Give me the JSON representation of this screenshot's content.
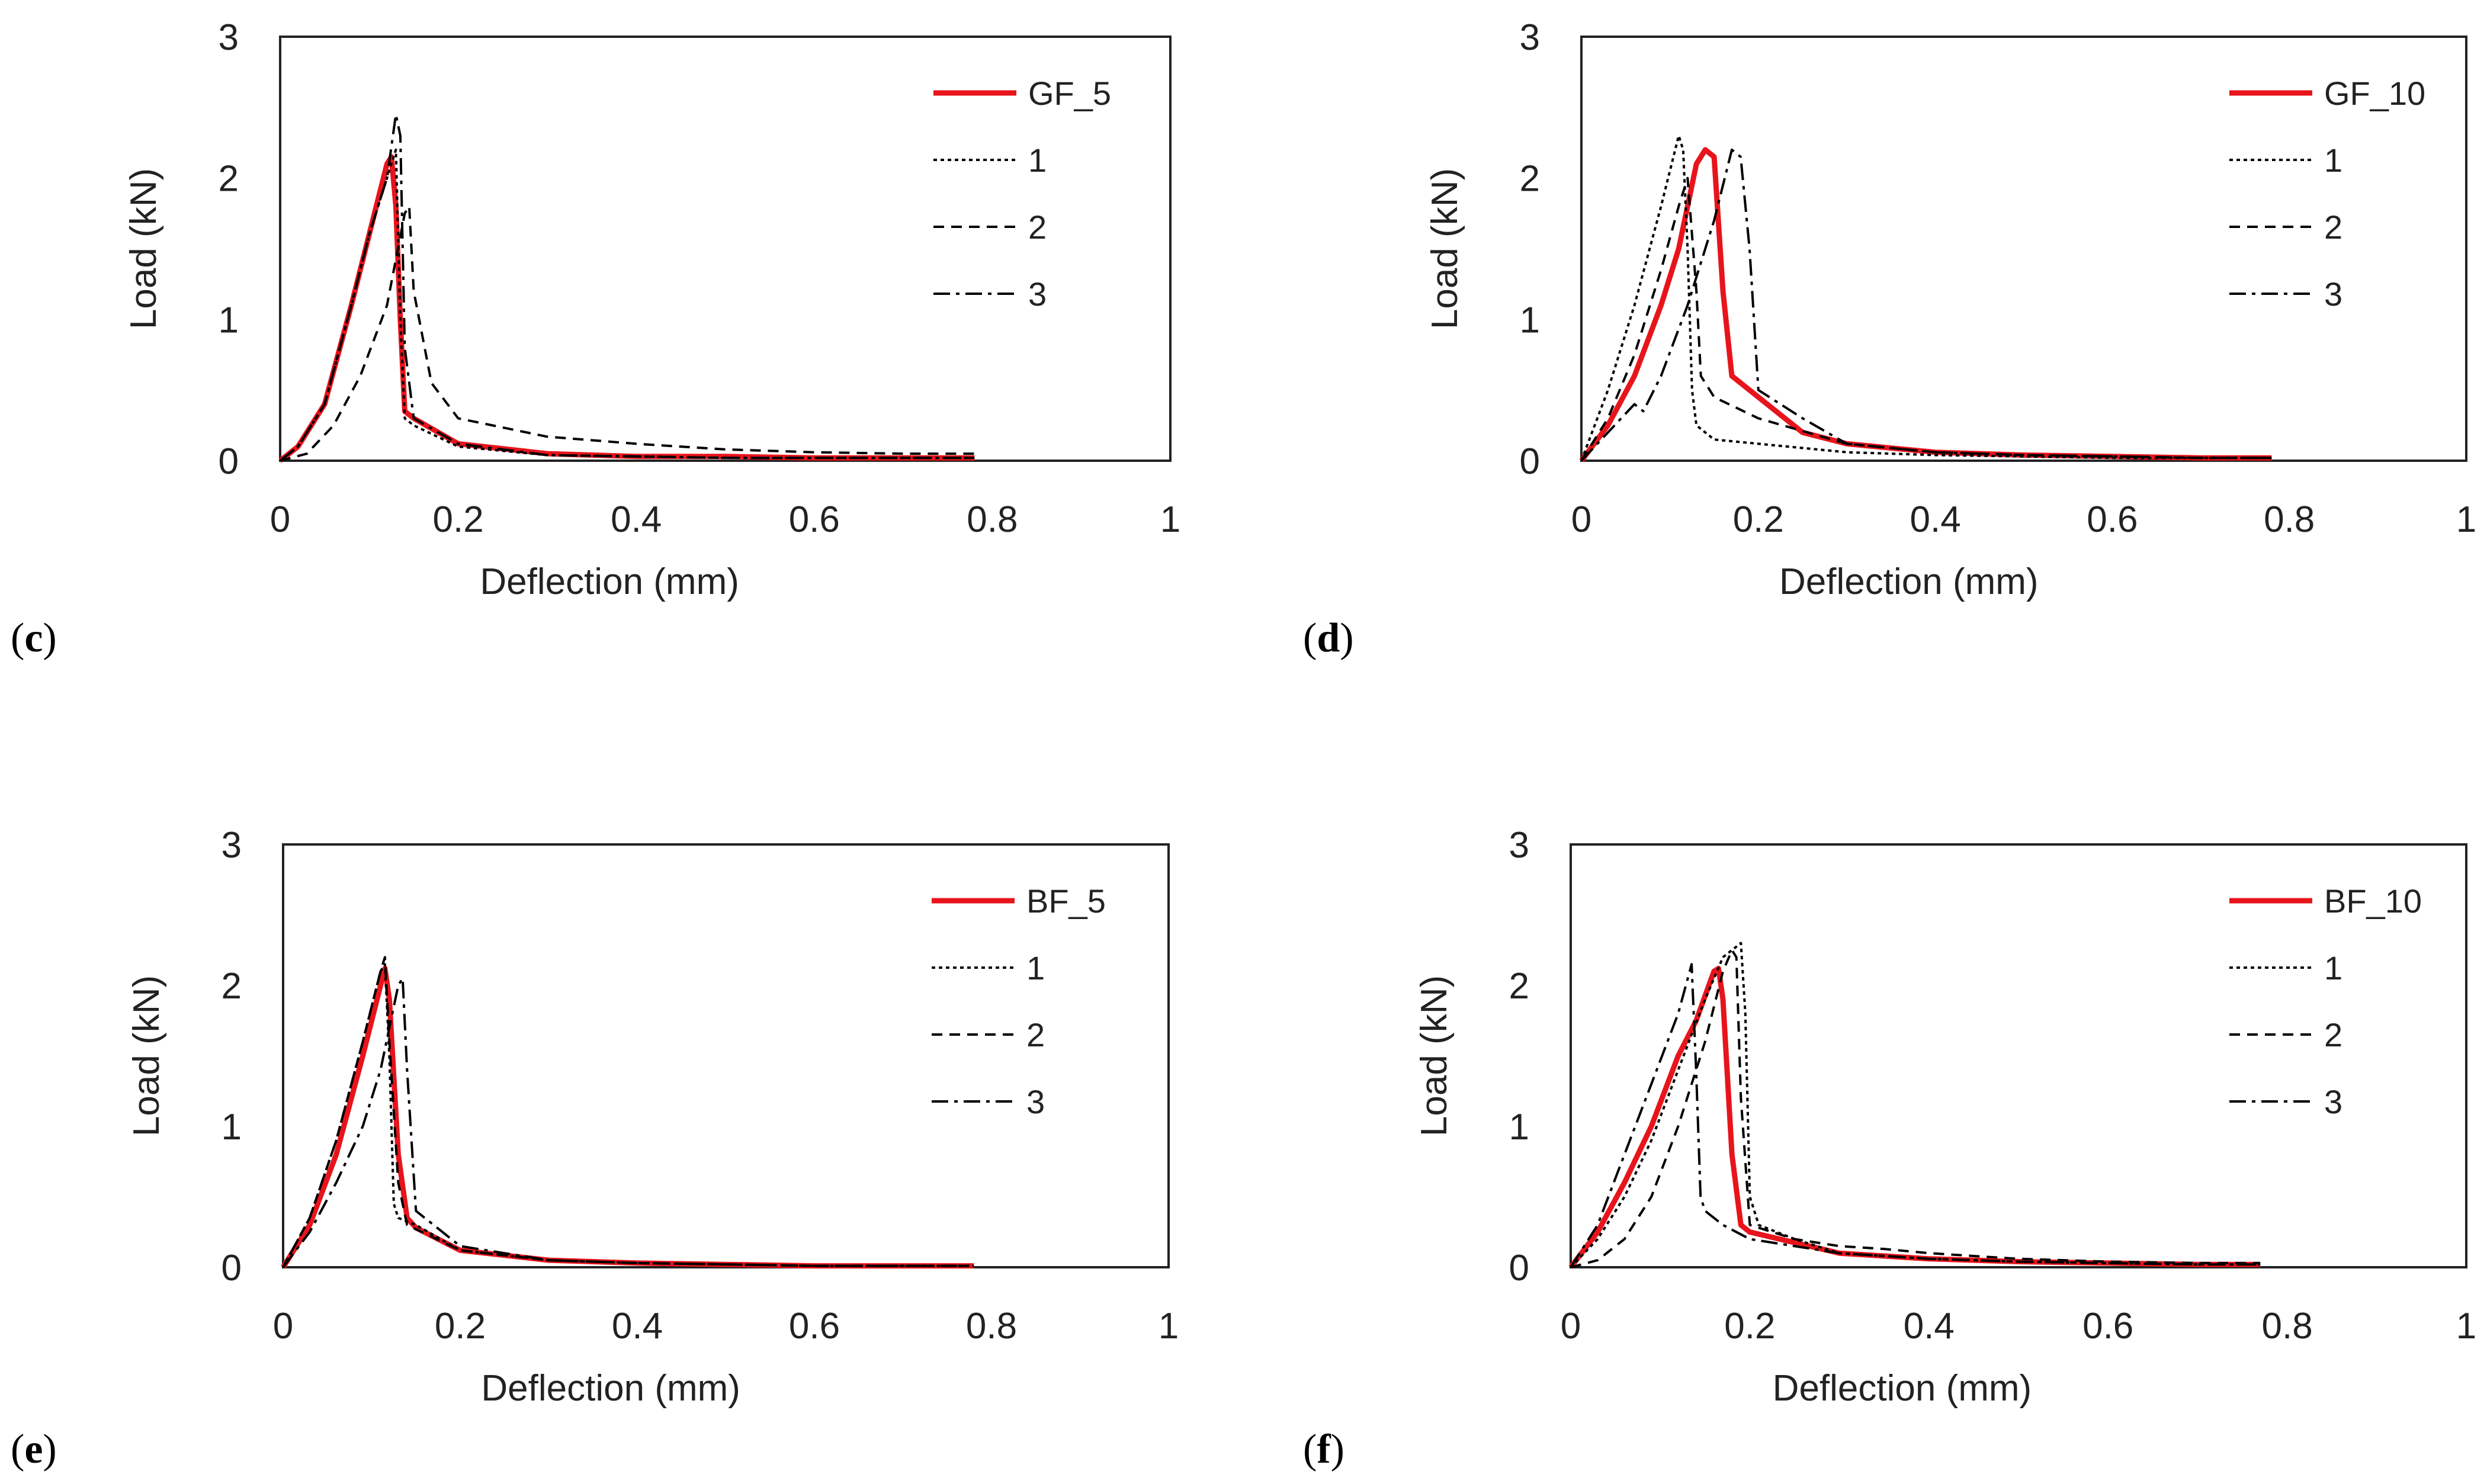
{
  "figure": {
    "panels": [
      "c",
      "d",
      "e",
      "f"
    ]
  },
  "chart_data": [
    {
      "panel_label": "c",
      "type": "line",
      "xlabel": "Deflection (mm)",
      "ylabel": "Load (kN)",
      "xlim": [
        0,
        1
      ],
      "ylim": [
        0,
        3
      ],
      "xticks": [
        "0",
        "0.2",
        "0.4",
        "0.6",
        "0.8",
        "1"
      ],
      "yticks": [
        "0",
        "1",
        "2",
        "3"
      ],
      "grid": false,
      "legend": "top-right",
      "series": [
        {
          "name": "GF_5",
          "style": "solid",
          "color": "#e8141c",
          "x": [
            0,
            0.02,
            0.05,
            0.08,
            0.1,
            0.12,
            0.125,
            0.13,
            0.135,
            0.14,
            0.15,
            0.2,
            0.3,
            0.4,
            0.5,
            0.6,
            0.7,
            0.78
          ],
          "y": [
            0,
            0.1,
            0.4,
            1.1,
            1.6,
            2.1,
            2.15,
            1.8,
            1.0,
            0.35,
            0.3,
            0.12,
            0.05,
            0.03,
            0.03,
            0.02,
            0.02,
            0.02
          ]
        },
        {
          "name": "1",
          "style": "dot",
          "color": "#000000",
          "x": [
            0,
            0.02,
            0.05,
            0.08,
            0.1,
            0.12,
            0.13,
            0.135,
            0.14,
            0.15,
            0.2,
            0.3,
            0.4,
            0.5,
            0.6,
            0.7,
            0.78
          ],
          "y": [
            0,
            0.1,
            0.4,
            1.1,
            1.6,
            2.0,
            2.2,
            1.0,
            0.3,
            0.25,
            0.1,
            0.04,
            0.03,
            0.02,
            0.02,
            0.02,
            0.02
          ]
        },
        {
          "name": "2",
          "style": "dash",
          "color": "#000000",
          "x": [
            0,
            0.03,
            0.06,
            0.09,
            0.12,
            0.14,
            0.145,
            0.15,
            0.17,
            0.2,
            0.3,
            0.4,
            0.5,
            0.6,
            0.7,
            0.78
          ],
          "y": [
            0,
            0.05,
            0.25,
            0.6,
            1.1,
            1.75,
            1.8,
            1.2,
            0.55,
            0.3,
            0.17,
            0.12,
            0.08,
            0.06,
            0.05,
            0.05
          ]
        },
        {
          "name": "3",
          "style": "dashdot",
          "color": "#000000",
          "x": [
            0,
            0.02,
            0.05,
            0.08,
            0.1,
            0.12,
            0.13,
            0.135,
            0.14,
            0.15,
            0.2,
            0.3,
            0.4,
            0.5,
            0.6,
            0.7,
            0.78
          ],
          "y": [
            0,
            0.1,
            0.4,
            1.1,
            1.6,
            2.0,
            2.45,
            2.3,
            0.8,
            0.3,
            0.12,
            0.04,
            0.03,
            0.02,
            0.02,
            0.02,
            0.02
          ]
        }
      ]
    },
    {
      "panel_label": "d",
      "type": "line",
      "xlabel": "Deflection (mm)",
      "ylabel": "Load (kN)",
      "xlim": [
        0,
        1
      ],
      "ylim": [
        0,
        3
      ],
      "xticks": [
        "0",
        "0.2",
        "0.4",
        "0.6",
        "0.8",
        "1"
      ],
      "yticks": [
        "0",
        "1",
        "2",
        "3"
      ],
      "grid": false,
      "legend": "top-right",
      "series": [
        {
          "name": "GF_10",
          "style": "solid",
          "color": "#e8141c",
          "x": [
            0,
            0.03,
            0.06,
            0.09,
            0.11,
            0.13,
            0.14,
            0.15,
            0.16,
            0.17,
            0.2,
            0.25,
            0.3,
            0.4,
            0.5,
            0.6,
            0.7,
            0.78
          ],
          "y": [
            0,
            0.25,
            0.6,
            1.1,
            1.5,
            2.1,
            2.2,
            2.15,
            1.2,
            0.6,
            0.45,
            0.2,
            0.12,
            0.06,
            0.04,
            0.03,
            0.02,
            0.02
          ]
        },
        {
          "name": "1",
          "style": "dot",
          "color": "#000000",
          "x": [
            0,
            0.03,
            0.06,
            0.09,
            0.11,
            0.115,
            0.12,
            0.125,
            0.13,
            0.15,
            0.2,
            0.3,
            0.4,
            0.5,
            0.6,
            0.7,
            0.78
          ],
          "y": [
            0,
            0.5,
            1.1,
            1.8,
            2.3,
            2.2,
            1.5,
            0.5,
            0.25,
            0.15,
            0.12,
            0.06,
            0.04,
            0.03,
            0.02,
            0.02,
            0.02
          ]
        },
        {
          "name": "2",
          "style": "dash",
          "color": "#000000",
          "x": [
            0,
            0.03,
            0.06,
            0.09,
            0.11,
            0.12,
            0.13,
            0.135,
            0.15,
            0.2,
            0.3,
            0.4,
            0.5,
            0.6,
            0.7,
            0.78
          ],
          "y": [
            0,
            0.3,
            0.75,
            1.35,
            1.8,
            2.0,
            1.2,
            0.6,
            0.45,
            0.3,
            0.12,
            0.06,
            0.04,
            0.03,
            0.02,
            0.02
          ]
        },
        {
          "name": "3",
          "style": "dashdot",
          "color": "#000000",
          "x": [
            0,
            0.03,
            0.06,
            0.07,
            0.09,
            0.12,
            0.15,
            0.17,
            0.18,
            0.19,
            0.2,
            0.25,
            0.3,
            0.4,
            0.5,
            0.6,
            0.7,
            0.78
          ],
          "y": [
            0,
            0.2,
            0.4,
            0.35,
            0.6,
            1.1,
            1.7,
            2.2,
            2.15,
            1.5,
            0.5,
            0.3,
            0.12,
            0.06,
            0.04,
            0.03,
            0.02,
            0.02
          ]
        }
      ]
    },
    {
      "panel_label": "e",
      "type": "line",
      "xlabel": "Deflection (mm)",
      "ylabel": "Load (kN)",
      "xlim": [
        0,
        1
      ],
      "ylim": [
        0,
        3
      ],
      "xticks": [
        "0",
        "0.2",
        "0.4",
        "0.6",
        "0.8",
        "1"
      ],
      "yticks": [
        "0",
        "1",
        "2",
        "3"
      ],
      "grid": false,
      "legend": "top-right",
      "series": [
        {
          "name": "BF_5",
          "style": "solid",
          "color": "#e8141c",
          "x": [
            0,
            0.03,
            0.06,
            0.09,
            0.11,
            0.115,
            0.12,
            0.13,
            0.14,
            0.15,
            0.2,
            0.3,
            0.4,
            0.5,
            0.6,
            0.7,
            0.78
          ],
          "y": [
            0,
            0.3,
            0.8,
            1.5,
            2.0,
            2.12,
            1.9,
            0.8,
            0.35,
            0.28,
            0.12,
            0.05,
            0.03,
            0.02,
            0.01,
            0.01,
            0.01
          ]
        },
        {
          "name": "1",
          "style": "dot",
          "color": "#000000",
          "x": [
            0,
            0.03,
            0.06,
            0.09,
            0.11,
            0.115,
            0.12,
            0.125,
            0.13,
            0.15,
            0.2,
            0.3,
            0.4,
            0.5,
            0.6,
            0.7,
            0.78
          ],
          "y": [
            0,
            0.35,
            0.9,
            1.6,
            2.1,
            2.15,
            1.5,
            0.45,
            0.35,
            0.3,
            0.12,
            0.05,
            0.03,
            0.02,
            0.01,
            0.01,
            0.01
          ]
        },
        {
          "name": "2",
          "style": "dash",
          "color": "#000000",
          "x": [
            0,
            0.03,
            0.06,
            0.09,
            0.11,
            0.115,
            0.12,
            0.13,
            0.14,
            0.2,
            0.3,
            0.4,
            0.5,
            0.6,
            0.7,
            0.78
          ],
          "y": [
            0,
            0.35,
            0.9,
            1.6,
            2.1,
            2.2,
            1.6,
            0.6,
            0.3,
            0.12,
            0.05,
            0.03,
            0.02,
            0.01,
            0.01,
            0.01
          ]
        },
        {
          "name": "3",
          "style": "dashdot",
          "color": "#000000",
          "x": [
            0,
            0.03,
            0.06,
            0.09,
            0.11,
            0.12,
            0.13,
            0.135,
            0.14,
            0.15,
            0.2,
            0.3,
            0.4,
            0.5,
            0.6,
            0.7,
            0.78
          ],
          "y": [
            0,
            0.25,
            0.6,
            1.0,
            1.4,
            1.7,
            2.0,
            2.05,
            1.4,
            0.4,
            0.15,
            0.05,
            0.03,
            0.02,
            0.01,
            0.01,
            0.01
          ]
        }
      ]
    },
    {
      "panel_label": "f",
      "type": "line",
      "xlabel": "Deflection (mm)",
      "ylabel": "Load (kN)",
      "xlim": [
        0,
        1
      ],
      "ylim": [
        0,
        3
      ],
      "xticks": [
        "0",
        "0.2",
        "0.4",
        "0.6",
        "0.8",
        "1"
      ],
      "yticks": [
        "0",
        "1",
        "2",
        "3"
      ],
      "grid": false,
      "legend": "top-right",
      "series": [
        {
          "name": "BF_10",
          "style": "solid",
          "color": "#e8141c",
          "x": [
            0,
            0.03,
            0.06,
            0.09,
            0.12,
            0.14,
            0.16,
            0.165,
            0.17,
            0.18,
            0.19,
            0.2,
            0.3,
            0.4,
            0.5,
            0.6,
            0.7,
            0.77
          ],
          "y": [
            0,
            0.25,
            0.6,
            1.0,
            1.5,
            1.75,
            2.1,
            2.12,
            1.9,
            0.8,
            0.3,
            0.25,
            0.1,
            0.06,
            0.04,
            0.03,
            0.02,
            0.02
          ]
        },
        {
          "name": "1",
          "style": "dot",
          "color": "#000000",
          "x": [
            0,
            0.03,
            0.06,
            0.09,
            0.12,
            0.15,
            0.17,
            0.19,
            0.195,
            0.2,
            0.21,
            0.25,
            0.3,
            0.4,
            0.5,
            0.6,
            0.7,
            0.77
          ],
          "y": [
            0,
            0.2,
            0.5,
            0.9,
            1.4,
            1.9,
            2.2,
            2.3,
            1.8,
            0.5,
            0.3,
            0.2,
            0.1,
            0.06,
            0.04,
            0.03,
            0.02,
            0.02
          ]
        },
        {
          "name": "2",
          "style": "dash",
          "color": "#000000",
          "x": [
            0,
            0.03,
            0.06,
            0.09,
            0.12,
            0.15,
            0.17,
            0.18,
            0.185,
            0.19,
            0.2,
            0.25,
            0.3,
            0.35,
            0.4,
            0.5,
            0.6,
            0.7,
            0.77
          ],
          "y": [
            0,
            0.05,
            0.2,
            0.5,
            1.0,
            1.6,
            2.1,
            2.25,
            2.2,
            1.2,
            0.3,
            0.2,
            0.15,
            0.13,
            0.1,
            0.06,
            0.04,
            0.03,
            0.03
          ]
        },
        {
          "name": "3",
          "style": "dashdot",
          "color": "#000000",
          "x": [
            0,
            0.03,
            0.06,
            0.09,
            0.12,
            0.135,
            0.14,
            0.145,
            0.15,
            0.17,
            0.2,
            0.3,
            0.4,
            0.5,
            0.6,
            0.7,
            0.77
          ],
          "y": [
            0,
            0.3,
            0.8,
            1.3,
            1.8,
            2.15,
            1.4,
            0.5,
            0.4,
            0.3,
            0.2,
            0.1,
            0.06,
            0.04,
            0.03,
            0.02,
            0.02
          ]
        }
      ]
    }
  ]
}
